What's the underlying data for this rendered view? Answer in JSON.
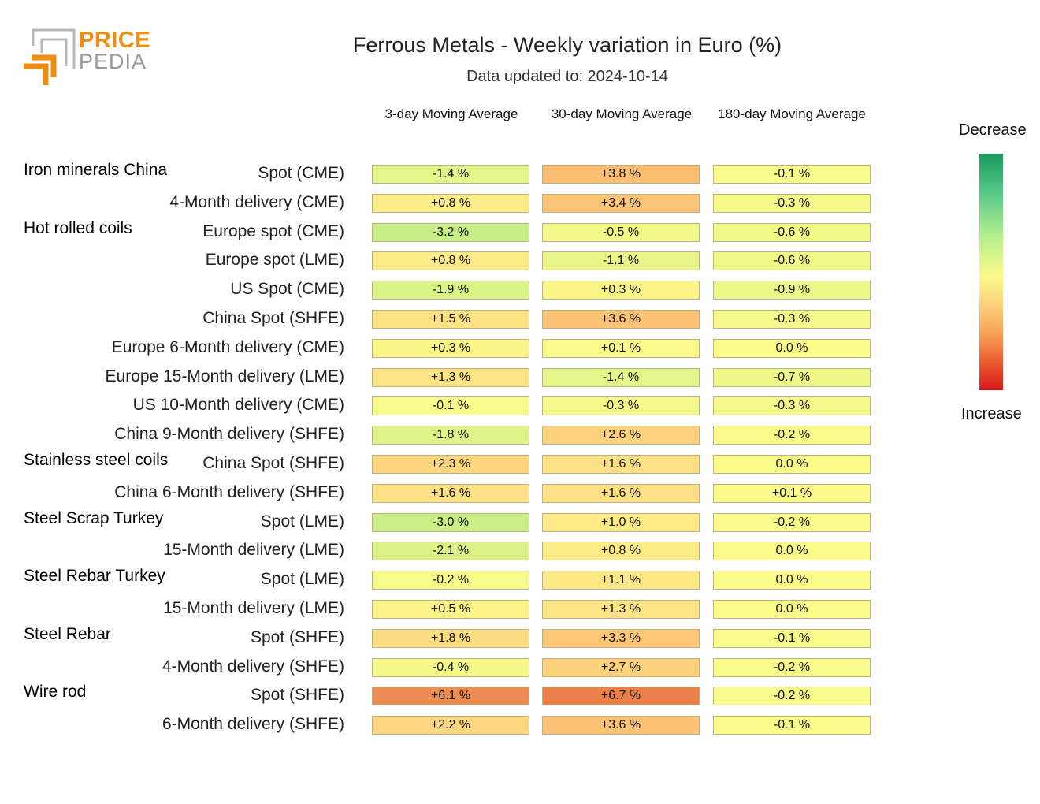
{
  "logo": {
    "line1": "PRICE",
    "line2": "PEDIA"
  },
  "title": "Ferrous Metals - Weekly variation in Euro (%)",
  "subtitle": "Data updated to: 2024-10-14",
  "legend": {
    "top": "Decrease",
    "bottom": "Increase"
  },
  "chart_data": {
    "type": "heatmap",
    "title": "Ferrous Metals - Weekly variation in Euro (%)",
    "columns": [
      "3-day Moving Average",
      "30-day Moving Average",
      "180-day Moving Average"
    ],
    "groups": [
      {
        "name": "Iron minerals China",
        "rows": [
          {
            "label": "Spot (CME)",
            "values": [
              -1.4,
              3.8,
              -0.1
            ],
            "texts": [
              "-1.4 %",
              "+3.8 %",
              "-0.1 %"
            ]
          },
          {
            "label": "4-Month delivery (CME)",
            "values": [
              0.8,
              3.4,
              -0.3
            ],
            "texts": [
              "+0.8 %",
              "+3.4 %",
              "-0.3 %"
            ]
          }
        ]
      },
      {
        "name": "Hot rolled coils",
        "rows": [
          {
            "label": "Europe spot (CME)",
            "values": [
              -3.2,
              -0.5,
              -0.6
            ],
            "texts": [
              "-3.2 %",
              "-0.5 %",
              "-0.6 %"
            ]
          },
          {
            "label": "Europe spot (LME)",
            "values": [
              0.8,
              -1.1,
              -0.6
            ],
            "texts": [
              "+0.8 %",
              "-1.1 %",
              "-0.6 %"
            ]
          },
          {
            "label": "US Spot (CME)",
            "values": [
              -1.9,
              0.3,
              -0.9
            ],
            "texts": [
              "-1.9 %",
              "+0.3 %",
              "-0.9 %"
            ]
          },
          {
            "label": "China Spot (SHFE)",
            "values": [
              1.5,
              3.6,
              -0.3
            ],
            "texts": [
              "+1.5 %",
              "+3.6 %",
              "-0.3 %"
            ]
          },
          {
            "label": "Europe 6-Month delivery (CME)",
            "values": [
              0.3,
              0.1,
              0.0
            ],
            "texts": [
              "+0.3 %",
              "+0.1 %",
              "0.0 %"
            ]
          },
          {
            "label": "Europe 15-Month delivery (LME)",
            "values": [
              1.3,
              -1.4,
              -0.7
            ],
            "texts": [
              "+1.3 %",
              "-1.4 %",
              "-0.7 %"
            ]
          },
          {
            "label": "US 10-Month delivery (CME)",
            "values": [
              -0.1,
              -0.3,
              -0.3
            ],
            "texts": [
              "-0.1 %",
              "-0.3 %",
              "-0.3 %"
            ]
          },
          {
            "label": "China 9-Month delivery (SHFE)",
            "values": [
              -1.8,
              2.6,
              -0.2
            ],
            "texts": [
              "-1.8 %",
              "+2.6 %",
              "-0.2 %"
            ]
          }
        ]
      },
      {
        "name": "Stainless steel coils",
        "rows": [
          {
            "label": "China Spot (SHFE)",
            "values": [
              2.3,
              1.6,
              0.0
            ],
            "texts": [
              "+2.3 %",
              "+1.6 %",
              "0.0 %"
            ]
          },
          {
            "label": "China 6-Month delivery (SHFE)",
            "values": [
              1.6,
              1.6,
              0.1
            ],
            "texts": [
              "+1.6 %",
              "+1.6 %",
              "+0.1 %"
            ]
          }
        ]
      },
      {
        "name": "Steel Scrap Turkey",
        "rows": [
          {
            "label": "Spot (LME)",
            "values": [
              -3.0,
              1.0,
              -0.2
            ],
            "texts": [
              "-3.0 %",
              "+1.0 %",
              "-0.2 %"
            ]
          },
          {
            "label": "15-Month delivery (LME)",
            "values": [
              -2.1,
              0.8,
              0.0
            ],
            "texts": [
              "-2.1 %",
              "+0.8 %",
              "0.0 %"
            ]
          }
        ]
      },
      {
        "name": "Steel Rebar Turkey",
        "rows": [
          {
            "label": "Spot (LME)",
            "values": [
              -0.2,
              1.1,
              0.0
            ],
            "texts": [
              "-0.2 %",
              "+1.1 %",
              "0.0 %"
            ]
          },
          {
            "label": "15-Month delivery (LME)",
            "values": [
              0.5,
              1.3,
              0.0
            ],
            "texts": [
              "+0.5 %",
              "+1.3 %",
              "0.0 %"
            ]
          }
        ]
      },
      {
        "name": "Steel Rebar",
        "rows": [
          {
            "label": "Spot (SHFE)",
            "values": [
              1.8,
              3.3,
              -0.1
            ],
            "texts": [
              "+1.8 %",
              "+3.3 %",
              "-0.1 %"
            ]
          },
          {
            "label": "4-Month delivery (SHFE)",
            "values": [
              -0.4,
              2.7,
              -0.2
            ],
            "texts": [
              "-0.4 %",
              "+2.7 %",
              "-0.2 %"
            ]
          }
        ]
      },
      {
        "name": "Wire rod",
        "rows": [
          {
            "label": "Spot (SHFE)",
            "values": [
              6.1,
              6.7,
              -0.2
            ],
            "texts": [
              "+6.1 %",
              "+6.7 %",
              "-0.2 %"
            ]
          },
          {
            "label": "6-Month delivery (SHFE)",
            "values": [
              2.2,
              3.6,
              -0.1
            ],
            "texts": [
              "+2.2 %",
              "+3.6 %",
              "-0.1 %"
            ]
          }
        ]
      }
    ],
    "color_scale": {
      "decrease": "#1a9a5e",
      "neutral": "#fbfb8a",
      "increase": "#d7191c"
    }
  }
}
